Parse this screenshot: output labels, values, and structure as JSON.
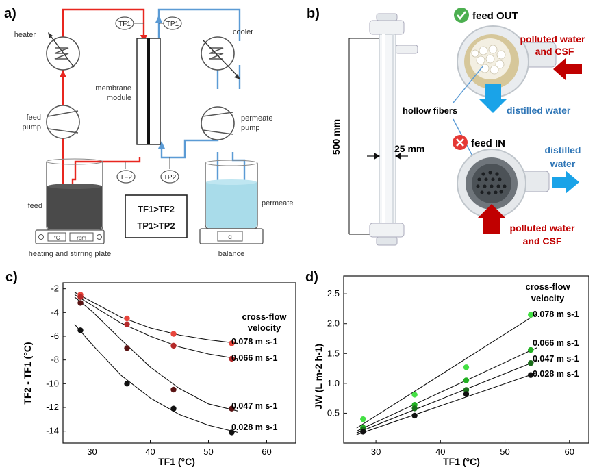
{
  "panel_a": {
    "letter": "a)",
    "labels": {
      "heater": "heater",
      "feed_pump": [
        "feed",
        "pump"
      ],
      "membrane_module": [
        "membrane",
        "module"
      ],
      "cooler": "cooler",
      "permeate_pump": [
        "permeate",
        "pump"
      ],
      "feed": "feed",
      "permeate": "permeate",
      "heating_plate": "heating and stirring plate",
      "balance": "balance",
      "plate_temp": "°C",
      "plate_rpm": "rpm",
      "balance_unit": "g"
    },
    "sensors": {
      "tf1": "TF1",
      "tp1": "TP1",
      "tf2": "TF2",
      "tp2": "TP2"
    },
    "relations": [
      "TF1>TF2",
      "TP1>TP2"
    ],
    "colors": {
      "hot": "#e8261f",
      "cold": "#5b9bd5",
      "liquid_feed": "#4a4a4a",
      "liquid_permeate": "#a9dcea"
    }
  },
  "panel_b": {
    "letter": "b)",
    "length_label": "500 mm",
    "diameter_label": "25 mm",
    "feed_out": "feed OUT",
    "feed_in": "feed IN",
    "hollow_fibers": "hollow fibers",
    "polluted_top": [
      "polluted water",
      "and CSF"
    ],
    "distilled_top": "distilled water",
    "distilled_bottom": [
      "distilled",
      "water"
    ],
    "polluted_bottom": [
      "polluted water",
      "and CSF"
    ],
    "colors": {
      "red_text": "#c00000",
      "blue_text": "#2e75b6",
      "red_arrow": "#c00000",
      "blue_arrow": "#1aa3e8",
      "check": "#4caf50",
      "cross": "#e53935"
    }
  },
  "panel_c": {
    "letter": "c)",
    "chart_data": {
      "type": "scatter",
      "xlabel": "TF1 (°C)",
      "ylabel": "TF2 - TF1 (°C)",
      "xlim": [
        25,
        65
      ],
      "ylim": [
        -15,
        -1.5
      ],
      "xticks": [
        30,
        40,
        50,
        60
      ],
      "yticks": [
        -2,
        -4,
        -6,
        -8,
        -10,
        -12,
        -14
      ],
      "legend_title": [
        "cross-flow",
        "velocity"
      ],
      "series": [
        {
          "name": "0.078 m s-1",
          "color": "#e8453c",
          "x": [
            28,
            36,
            44,
            54
          ],
          "y": [
            -2.5,
            -4.5,
            -5.8,
            -6.6
          ],
          "fit": [
            [
              27,
              -2.3
            ],
            [
              30,
              -3.1
            ],
            [
              35,
              -4.4
            ],
            [
              40,
              -5.3
            ],
            [
              45,
              -5.9
            ],
            [
              50,
              -6.3
            ],
            [
              55,
              -6.6
            ]
          ]
        },
        {
          "name": "0.066 m s-1",
          "color": "#b52a2a",
          "x": [
            28,
            36,
            44,
            54
          ],
          "y": [
            -2.7,
            -5.0,
            -6.8,
            -7.9
          ],
          "fit": [
            [
              27,
              -2.5
            ],
            [
              30,
              -3.4
            ],
            [
              35,
              -4.9
            ],
            [
              40,
              -6.0
            ],
            [
              45,
              -6.9
            ],
            [
              50,
              -7.5
            ],
            [
              55,
              -7.9
            ]
          ]
        },
        {
          "name": "0.047 m s-1",
          "color": "#5a1414",
          "x": [
            28,
            36,
            44,
            54
          ],
          "y": [
            -3.2,
            -7.0,
            -10.5,
            -12.1
          ],
          "fit": [
            [
              27,
              -2.7
            ],
            [
              30,
              -3.9
            ],
            [
              35,
              -6.3
            ],
            [
              40,
              -8.6
            ],
            [
              45,
              -10.4
            ],
            [
              50,
              -11.7
            ],
            [
              55,
              -12.3
            ]
          ]
        },
        {
          "name": "0.028 m s-1",
          "color": "#111111",
          "x": [
            28,
            36,
            44,
            54
          ],
          "y": [
            -5.5,
            -10.0,
            -12.1,
            -14.1
          ],
          "fit": [
            [
              27,
              -5.0
            ],
            [
              30,
              -6.7
            ],
            [
              35,
              -9.3
            ],
            [
              40,
              -11.2
            ],
            [
              45,
              -12.6
            ],
            [
              50,
              -13.5
            ],
            [
              55,
              -14.1
            ]
          ]
        }
      ]
    }
  },
  "panel_d": {
    "letter": "d)",
    "chart_data": {
      "type": "scatter",
      "xlabel": "TF1 (°C)",
      "ylabel": "JW (L m-2 h-1)",
      "xlim": [
        25,
        63
      ],
      "ylim": [
        0,
        2.8
      ],
      "xticks": [
        30,
        40,
        50,
        60
      ],
      "yticks": [
        0.5,
        1.0,
        1.5,
        2.0,
        2.5
      ],
      "legend_title": [
        "cross-flow",
        "velocity"
      ],
      "series": [
        {
          "name": "0.078 m s-1",
          "color": "#44e044",
          "x": [
            28,
            36,
            44,
            54
          ],
          "y": [
            0.4,
            0.81,
            1.27,
            2.15
          ],
          "fit": [
            [
              27,
              0.25
            ],
            [
              55,
              2.17
            ]
          ]
        },
        {
          "name": "0.066 m s-1",
          "color": "#22b022",
          "x": [
            28,
            36,
            44,
            54
          ],
          "y": [
            0.26,
            0.64,
            1.05,
            1.56
          ],
          "fit": [
            [
              27,
              0.2
            ],
            [
              55,
              1.6
            ]
          ]
        },
        {
          "name": "0.047 m s-1",
          "color": "#1a6e1a",
          "x": [
            28,
            36,
            44,
            54
          ],
          "y": [
            0.23,
            0.58,
            0.89,
            1.34
          ],
          "fit": [
            [
              27,
              0.17
            ],
            [
              55,
              1.38
            ]
          ]
        },
        {
          "name": "0.028 m s-1",
          "color": "#111111",
          "x": [
            28,
            36,
            44,
            54
          ],
          "y": [
            0.19,
            0.46,
            0.82,
            1.14
          ],
          "fit": [
            [
              27,
              0.14
            ],
            [
              55,
              1.18
            ]
          ]
        }
      ]
    }
  }
}
